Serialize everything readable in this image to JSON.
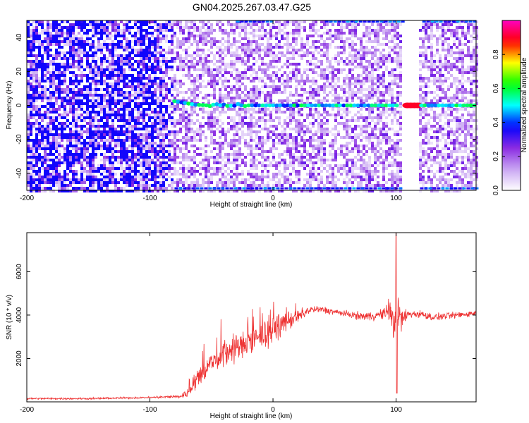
{
  "title": "GN04.2025.267.03.47.G25",
  "chart_data": [
    {
      "type": "heatmap",
      "panel": "spectrogram",
      "xlabel": "Height of straight line (km)",
      "ylabel": "Frequency (Hz)",
      "xlim": [
        -200,
        165
      ],
      "ylim": [
        -50,
        50
      ],
      "xticks": [
        -200,
        -100,
        0,
        100
      ],
      "yticks": [
        -40,
        -20,
        0,
        20,
        40
      ],
      "colorbar": {
        "label": "Normalized spectral amplitude",
        "range": [
          0.0,
          1.0
        ],
        "ticks": [
          "0.0",
          "0.2",
          "0.4",
          "0.6",
          "0.8"
        ],
        "colors": [
          "#ffffff",
          "#c9a6f2",
          "#8a2be2",
          "#0000ff",
          "#00ffff",
          "#00ff00",
          "#ffff00",
          "#ff0000",
          "#ff00c0"
        ]
      },
      "features": {
        "noise_strong_until_km": -100,
        "noise_fade_end_km": -80,
        "carrier_start_km": -80,
        "carrier_frequency_hz": 0,
        "carrier_peak_amplitude": 0.9,
        "carrier_peak_km": 113,
        "data_gap_km": [
          105,
          118
        ],
        "alias_lines_hz": [
          49,
          -49
        ]
      }
    },
    {
      "type": "line",
      "panel": "snr",
      "xlabel": "Height of straight line (km)",
      "ylabel": "SNR (10 * v/v)",
      "xlim": [
        -200,
        165
      ],
      "ylim": [
        0,
        7800
      ],
      "xticks": [
        -200,
        -100,
        0,
        100
      ],
      "yticks": [
        2000,
        4000,
        6000
      ],
      "series_color": "#ee3333",
      "envelope": {
        "x": [
          -200,
          -150,
          -100,
          -75,
          -70,
          -65,
          -60,
          -55,
          -50,
          -40,
          -30,
          -20,
          -10,
          0,
          10,
          20,
          30,
          40,
          50,
          60,
          70,
          80,
          90,
          95,
          98,
          100,
          102,
          105,
          110,
          120,
          130,
          140,
          150,
          165
        ],
        "y": [
          150,
          150,
          200,
          250,
          400,
          800,
          1200,
          1500,
          1800,
          2200,
          2500,
          2700,
          3000,
          3300,
          3700,
          3900,
          4250,
          4250,
          4150,
          4050,
          3950,
          3950,
          4050,
          4300,
          3300,
          4400,
          3900,
          3800,
          4050,
          4050,
          3900,
          3950,
          4000,
          4100
        ]
      },
      "noise_amplitude": {
        "x": [
          -200,
          -100,
          -75,
          -60,
          -40,
          -20,
          0,
          20,
          30,
          60,
          90,
          96,
          100,
          104,
          110,
          165
        ],
        "y": [
          60,
          60,
          120,
          700,
          900,
          900,
          800,
          500,
          250,
          200,
          350,
          900,
          1700,
          900,
          250,
          200
        ]
      },
      "features": {
        "spike_km": 100,
        "spike_max": 7800,
        "spike_min": 400,
        "plateau_level": 4100
      }
    }
  ]
}
